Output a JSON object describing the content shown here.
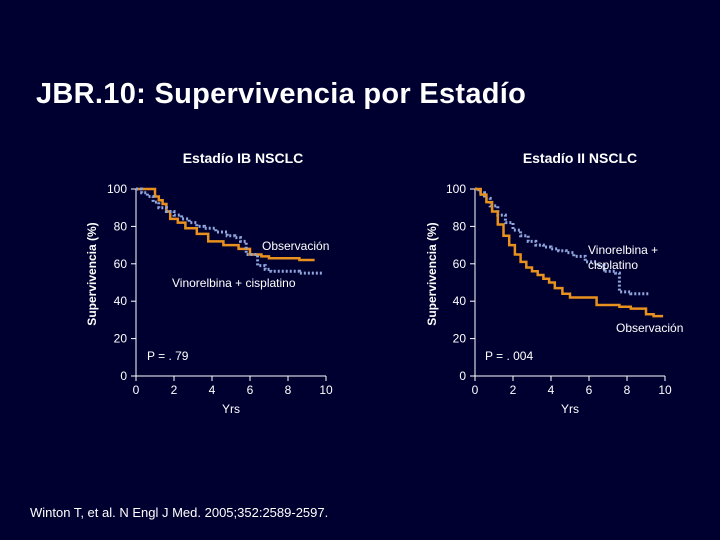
{
  "slide": {
    "title": "JBR.10: Supervivencia por Estadío",
    "footer": "Winton T, et al. N Engl J Med. 2005;352:2589-2597."
  },
  "colors": {
    "background": "#000030",
    "observation": "#e8911e",
    "vinorelbine": "#8fa6dc",
    "axis": "#ffffff"
  },
  "chart_data": [
    {
      "type": "line",
      "title": "Estadío IB NSCLC",
      "xlabel": "Yrs",
      "ylabel": "Supervivencia (%)",
      "xlim": [
        0,
        10
      ],
      "ylim": [
        0,
        100
      ],
      "x_ticks": [
        "0",
        "2",
        "4",
        "6",
        "8",
        "10"
      ],
      "y_ticks": [
        "0",
        "20",
        "40",
        "60",
        "80",
        "100"
      ],
      "annotation": "P = . 79",
      "series": [
        {
          "name": "Observación",
          "label": "Observación",
          "color_key": "observation",
          "style": "solid",
          "x": [
            0,
            0.6,
            1.0,
            1.2,
            1.4,
            1.6,
            1.8,
            2.2,
            2.6,
            3.2,
            3.8,
            4.6,
            5.4,
            6.0,
            6.6,
            7.0,
            7.4,
            7.8,
            8.6,
            9.4
          ],
          "y": [
            100,
            100,
            96,
            94,
            92,
            88,
            84,
            82,
            79,
            76,
            72,
            70,
            68,
            65,
            64,
            63,
            63,
            63,
            62,
            62
          ]
        },
        {
          "name": "Vinorelbina + cisplatino",
          "label": "Vinorelbina + cisplatino",
          "color_key": "vinorelbine",
          "style": "dotted",
          "x": [
            0,
            0.3,
            0.6,
            0.9,
            1.2,
            1.6,
            2.0,
            2.4,
            2.8,
            3.2,
            3.6,
            4.2,
            4.8,
            5.2,
            5.5,
            5.8,
            6.4,
            6.8,
            7.1,
            7.4,
            7.8,
            8.3,
            8.6,
            9.0,
            9.8
          ],
          "y": [
            100,
            98,
            96,
            93,
            90,
            88,
            86,
            84,
            82,
            80,
            79,
            77,
            75,
            74,
            72,
            65,
            59,
            57,
            56,
            56,
            56,
            56,
            55,
            55,
            55
          ]
        }
      ]
    },
    {
      "type": "line",
      "title": "Estadío II NSCLC",
      "xlabel": "Yrs",
      "ylabel": "Supervivencia (%)",
      "xlim": [
        0,
        10
      ],
      "ylim": [
        0,
        100
      ],
      "x_ticks": [
        "0",
        "2",
        "4",
        "6",
        "8",
        "10"
      ],
      "y_ticks": [
        "0",
        "20",
        "40",
        "60",
        "80",
        "100"
      ],
      "annotation": "P = . 004",
      "series": [
        {
          "name": "Vinorelbina + cisplatino",
          "label": "Vinorelbina +\ncisplatino",
          "color_key": "vinorelbine",
          "style": "dotted",
          "x": [
            0,
            0.2,
            0.5,
            0.8,
            1.2,
            1.6,
            2.0,
            2.4,
            2.8,
            3.2,
            3.6,
            4.0,
            4.4,
            4.8,
            5.2,
            5.8,
            6.4,
            6.8,
            7.4,
            7.6,
            8.2,
            9.2
          ],
          "y": [
            100,
            98,
            95,
            91,
            86,
            82,
            78,
            75,
            72,
            70,
            69,
            68,
            67,
            66,
            64,
            61,
            59,
            56,
            55,
            45,
            44,
            44
          ]
        },
        {
          "name": "Observación",
          "label": "Observación",
          "color_key": "observation",
          "style": "solid",
          "x": [
            0,
            0.3,
            0.6,
            0.9,
            1.2,
            1.5,
            1.8,
            2.1,
            2.4,
            2.7,
            3.0,
            3.3,
            3.6,
            3.9,
            4.2,
            4.6,
            5.0,
            6.0,
            6.4,
            7.0,
            7.6,
            8.2,
            8.6,
            9.0,
            9.4,
            9.9
          ],
          "y": [
            100,
            97,
            93,
            88,
            81,
            75,
            70,
            65,
            61,
            58,
            56,
            54,
            52,
            50,
            47,
            44,
            42,
            42,
            38,
            38,
            37,
            36,
            36,
            33,
            32,
            32
          ]
        }
      ]
    }
  ]
}
